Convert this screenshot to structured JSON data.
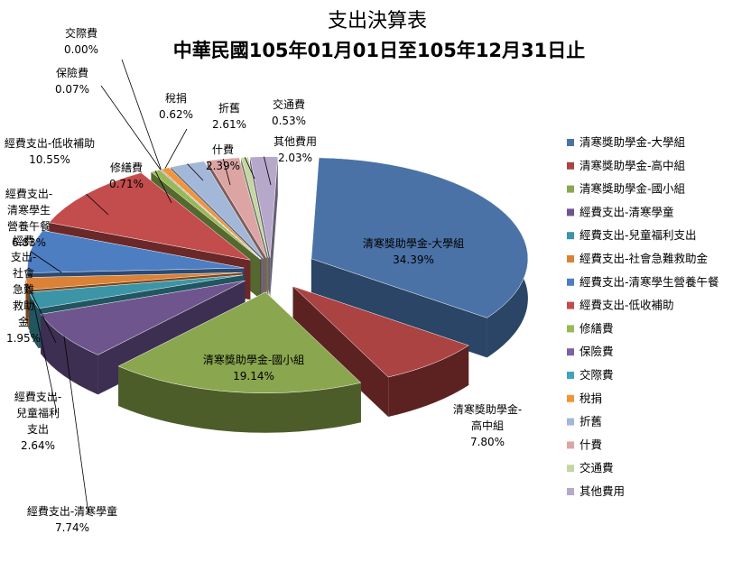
{
  "chart_data": {
    "type": "pie",
    "title": "支出決算表",
    "subtitle": "中華民國105年01月01日至105年12月31日止",
    "legend_position": "right",
    "slices": [
      {
        "name": "清寒獎助學金-大學組",
        "value": 34.39,
        "pct": "34.39%",
        "color": "#4a72a6",
        "side": "#2b4566",
        "label_lines": [
          "清寒獎助學金-大學組",
          "34.39%"
        ]
      },
      {
        "name": "清寒獎助學金-高中組",
        "value": 7.8,
        "pct": "7.80%",
        "color": "#ab4342",
        "side": "#5c2222",
        "label_lines": [
          "清寒獎助學金-",
          "高中組",
          "7.80%"
        ]
      },
      {
        "name": "清寒獎助學金-國小組",
        "value": 19.14,
        "pct": "19.14%",
        "color": "#8aa64e",
        "side": "#4d5d2a",
        "label_lines": [
          "清寒獎助學金-國小組",
          "19.14%"
        ]
      },
      {
        "name": "經費支出-清寒學童",
        "value": 7.74,
        "pct": "7.74%",
        "color": "#6f558e",
        "side": "#3d2f52",
        "label_lines": [
          "經費支出-清寒學童",
          "7.74%"
        ]
      },
      {
        "name": "經費支出-兒童福利支出",
        "value": 2.64,
        "pct": "2.64%",
        "color": "#3b95a7",
        "side": "#215560",
        "label_lines": [
          "經費支出-",
          "兒童福利",
          "支出",
          "2.64%"
        ]
      },
      {
        "name": "經費支出-社會急難救助金",
        "value": 1.95,
        "pct": "1.95%",
        "color": "#db8236",
        "side": "#7c461c",
        "label_lines": [
          "經費",
          "支出-",
          "社會",
          "急難",
          "救助",
          "金",
          "1.95%"
        ]
      },
      {
        "name": "經費支出-清寒學生營養午餐",
        "value": 6.83,
        "pct": "6.83%",
        "color": "#4d7ec2",
        "side": "#2b4a75",
        "label_lines": [
          "經費支出-",
          "清寒學生",
          "營養午餐",
          "6.83%"
        ]
      },
      {
        "name": "經費支出-低收補助",
        "value": 10.55,
        "pct": "10.55%",
        "color": "#c34c4c",
        "side": "#6b2828",
        "label_lines": [
          "經費支出-低收補助",
          "10.55%"
        ]
      },
      {
        "name": "修繕費",
        "value": 0.71,
        "pct": "0.71%",
        "color": "#98b956",
        "side": "#55682f",
        "label_lines": [
          "修繕費",
          "0.71%"
        ]
      },
      {
        "name": "保險費",
        "value": 0.07,
        "pct": "0.07%",
        "color": "#7c62a0",
        "side": "#44365a",
        "label_lines": [
          "保險費",
          "0.07%"
        ]
      },
      {
        "name": "交際費",
        "value": 0.0,
        "pct": "0.00%",
        "color": "#3fa6b9",
        "side": "#235d68",
        "label_lines": [
          "交際費",
          "0.00%"
        ]
      },
      {
        "name": "稅捐",
        "value": 0.62,
        "pct": "0.62%",
        "color": "#f29437",
        "side": "#86511d",
        "label_lines": [
          "稅捐",
          "0.62%"
        ]
      },
      {
        "name": "折舊",
        "value": 2.61,
        "pct": "2.61%",
        "color": "#a3b8d8",
        "side": "#5d6b80",
        "label_lines": [
          "折舊",
          "2.61%"
        ]
      },
      {
        "name": "什費",
        "value": 2.39,
        "pct": "2.39%",
        "color": "#dca5a4",
        "side": "#7e5e5d",
        "label_lines": [
          "什費",
          "2.39%"
        ]
      },
      {
        "name": "交通費",
        "value": 0.53,
        "pct": "0.53%",
        "color": "#c5d6a2",
        "side": "#6f7a5b",
        "label_lines": [
          "交通費",
          "0.53%"
        ]
      },
      {
        "name": "其他費用",
        "value": 2.03,
        "pct": "2.03%",
        "color": "#b6a8cb",
        "side": "#665e72",
        "label_lines": [
          "其他費用",
          "2.03%"
        ]
      }
    ]
  }
}
